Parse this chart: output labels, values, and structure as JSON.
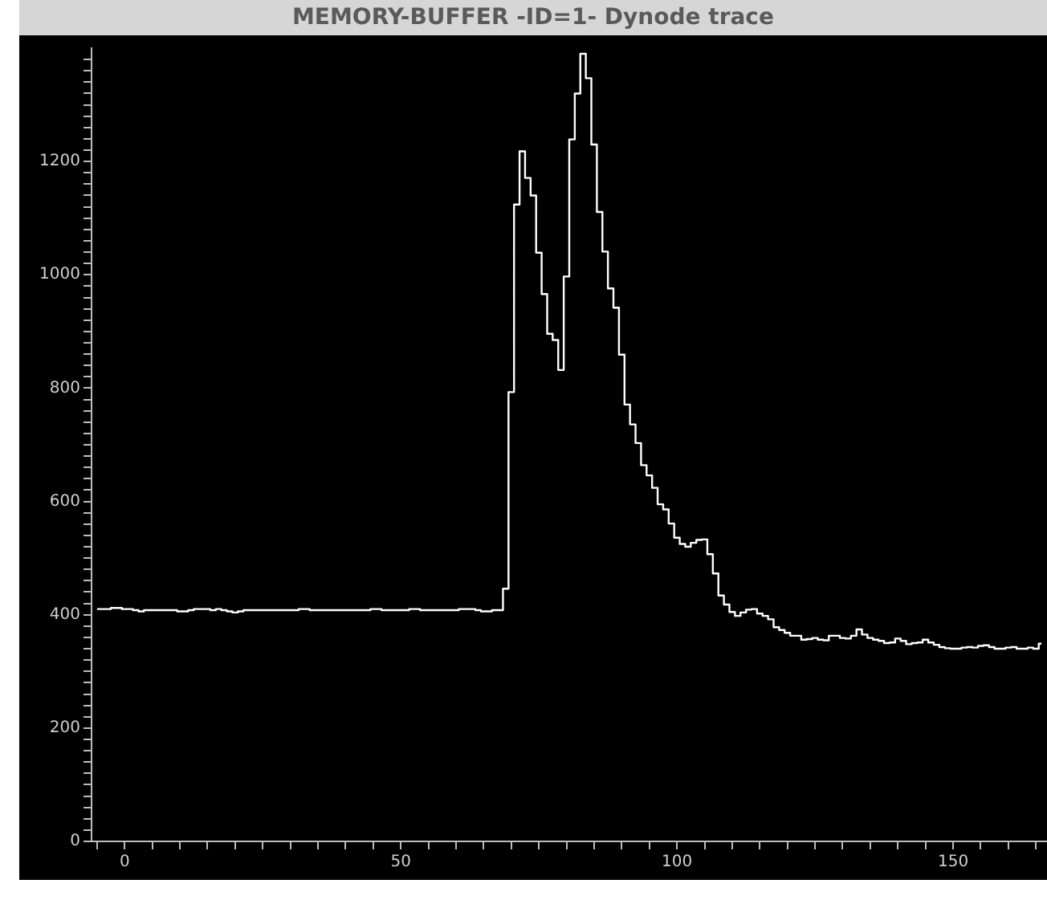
{
  "chart_data": {
    "type": "step",
    "title": "MEMORY-BUFFER -ID=1- Dynode trace",
    "color": "#ffffff",
    "x": [
      -5,
      -4,
      -3,
      -2,
      -1,
      0,
      1,
      2,
      3,
      4,
      5,
      6,
      7,
      8,
      9,
      10,
      11,
      12,
      13,
      14,
      15,
      16,
      17,
      18,
      19,
      20,
      21,
      22,
      23,
      24,
      25,
      26,
      27,
      28,
      29,
      30,
      31,
      32,
      33,
      34,
      35,
      36,
      37,
      38,
      39,
      40,
      41,
      42,
      43,
      44,
      45,
      46,
      47,
      48,
      49,
      50,
      51,
      52,
      53,
      54,
      55,
      56,
      57,
      58,
      59,
      60,
      61,
      62,
      63,
      64,
      65,
      66,
      67,
      68,
      69,
      70,
      71,
      72,
      73,
      74,
      75,
      76,
      77,
      78,
      79,
      80,
      81,
      82,
      83,
      84,
      85,
      86,
      87,
      88,
      89,
      90,
      91,
      92,
      93,
      94,
      95,
      96,
      97,
      98,
      99,
      100,
      101,
      102,
      103,
      104,
      105,
      106,
      107,
      108,
      109,
      110,
      111,
      112,
      113,
      114,
      115,
      116,
      117,
      118,
      119,
      120,
      121,
      122,
      123,
      124,
      125,
      126,
      127,
      128,
      129,
      130,
      131,
      132,
      133,
      134,
      135,
      136,
      137,
      138,
      139,
      140,
      141,
      142,
      143,
      144,
      145,
      146,
      147,
      148,
      149,
      150,
      151,
      152,
      153,
      154,
      155,
      156,
      157,
      158,
      159,
      160,
      161,
      162,
      163,
      164,
      165,
      166
    ],
    "values": [
      410,
      410,
      410,
      412,
      412,
      410,
      410,
      408,
      406,
      408,
      408,
      408,
      408,
      408,
      408,
      406,
      406,
      408,
      410,
      410,
      410,
      408,
      410,
      408,
      406,
      404,
      406,
      408,
      408,
      408,
      408,
      408,
      408,
      408,
      408,
      408,
      408,
      410,
      410,
      408,
      408,
      408,
      408,
      408,
      408,
      408,
      408,
      408,
      408,
      408,
      410,
      410,
      408,
      408,
      408,
      408,
      408,
      410,
      410,
      408,
      408,
      408,
      408,
      408,
      408,
      408,
      410,
      410,
      410,
      408,
      406,
      406,
      408,
      408,
      446,
      793,
      1124,
      1218,
      1171,
      1140,
      1039,
      966,
      896,
      885,
      832,
      997,
      1239,
      1320,
      1390,
      1347,
      1230,
      1111,
      1041,
      976,
      942,
      859,
      771,
      736,
      703,
      664,
      646,
      624,
      595,
      586,
      561,
      536,
      525,
      520,
      527,
      532,
      533,
      507,
      473,
      434,
      418,
      405,
      398,
      404,
      409,
      410,
      402,
      398,
      392,
      378,
      373,
      368,
      363,
      363,
      356,
      357,
      359,
      356,
      355,
      363,
      363,
      359,
      358,
      363,
      374,
      365,
      359,
      356,
      354,
      350,
      351,
      358,
      354,
      348,
      350,
      351,
      356,
      351,
      347,
      343,
      341,
      340,
      340,
      342,
      343,
      342,
      345,
      346,
      343,
      340,
      340,
      342,
      343,
      340,
      340,
      342,
      340,
      349
    ],
    "xlim": [
      -6,
      167
    ],
    "ylim": [
      0,
      1400
    ],
    "xticks": [
      {
        "value": -5,
        "label": null
      },
      0,
      {
        "value": 5,
        "label": null
      },
      {
        "value": 10,
        "label": null
      },
      {
        "value": 15,
        "label": null
      },
      {
        "value": 20,
        "label": null
      },
      {
        "value": 25,
        "label": null
      },
      {
        "value": 30,
        "label": null
      },
      {
        "value": 35,
        "label": null
      },
      {
        "value": 40,
        "label": null
      },
      {
        "value": 45,
        "label": null
      },
      50,
      {
        "value": 55,
        "label": null
      },
      {
        "value": 60,
        "label": null
      },
      {
        "value": 65,
        "label": null
      },
      {
        "value": 70,
        "label": null
      },
      {
        "value": 75,
        "label": null
      },
      {
        "value": 80,
        "label": null
      },
      {
        "value": 85,
        "label": null
      },
      {
        "value": 90,
        "label": null
      },
      {
        "value": 95,
        "label": null
      },
      100,
      {
        "value": 105,
        "label": null
      },
      {
        "value": 110,
        "label": null
      },
      {
        "value": 115,
        "label": null
      },
      {
        "value": 120,
        "label": null
      },
      {
        "value": 125,
        "label": null
      },
      {
        "value": 130,
        "label": null
      },
      {
        "value": 135,
        "label": null
      },
      {
        "value": 140,
        "label": null
      },
      {
        "value": 145,
        "label": null
      },
      150,
      {
        "value": 155,
        "label": null
      },
      {
        "value": 160,
        "label": null
      },
      {
        "value": 165,
        "label": null
      }
    ],
    "yticks": [
      0,
      {
        "value": 20,
        "label": null
      },
      {
        "value": 40,
        "label": null
      },
      {
        "value": 60,
        "label": null
      },
      {
        "value": 80,
        "label": null
      },
      {
        "value": 100,
        "label": null
      },
      {
        "value": 120,
        "label": null
      },
      {
        "value": 140,
        "label": null
      },
      {
        "value": 160,
        "label": null
      },
      {
        "value": 180,
        "label": null
      },
      200,
      {
        "value": 220,
        "label": null
      },
      {
        "value": 240,
        "label": null
      },
      {
        "value": 260,
        "label": null
      },
      {
        "value": 280,
        "label": null
      },
      {
        "value": 300,
        "label": null
      },
      {
        "value": 320,
        "label": null
      },
      {
        "value": 340,
        "label": null
      },
      {
        "value": 360,
        "label": null
      },
      {
        "value": 380,
        "label": null
      },
      400,
      {
        "value": 420,
        "label": null
      },
      {
        "value": 440,
        "label": null
      },
      {
        "value": 460,
        "label": null
      },
      {
        "value": 480,
        "label": null
      },
      {
        "value": 500,
        "label": null
      },
      {
        "value": 520,
        "label": null
      },
      {
        "value": 540,
        "label": null
      },
      {
        "value": 560,
        "label": null
      },
      {
        "value": 580,
        "label": null
      },
      600,
      {
        "value": 620,
        "label": null
      },
      {
        "value": 640,
        "label": null
      },
      {
        "value": 660,
        "label": null
      },
      {
        "value": 680,
        "label": null
      },
      {
        "value": 700,
        "label": null
      },
      {
        "value": 720,
        "label": null
      },
      {
        "value": 740,
        "label": null
      },
      {
        "value": 760,
        "label": null
      },
      {
        "value": 780,
        "label": null
      },
      800,
      {
        "value": 820,
        "label": null
      },
      {
        "value": 840,
        "label": null
      },
      {
        "value": 860,
        "label": null
      },
      {
        "value": 880,
        "label": null
      },
      {
        "value": 900,
        "label": null
      },
      {
        "value": 920,
        "label": null
      },
      {
        "value": 940,
        "label": null
      },
      {
        "value": 960,
        "label": null
      },
      {
        "value": 980,
        "label": null
      },
      1000,
      {
        "value": 1020,
        "label": null
      },
      {
        "value": 1040,
        "label": null
      },
      {
        "value": 1060,
        "label": null
      },
      {
        "value": 1080,
        "label": null
      },
      {
        "value": 1100,
        "label": null
      },
      {
        "value": 1120,
        "label": null
      },
      {
        "value": 1140,
        "label": null
      },
      {
        "value": 1160,
        "label": null
      },
      {
        "value": 1180,
        "label": null
      },
      1200,
      {
        "value": 1220,
        "label": null
      },
      {
        "value": 1240,
        "label": null
      },
      {
        "value": 1260,
        "label": null
      },
      {
        "value": 1280,
        "label": null
      },
      {
        "value": 1300,
        "label": null
      },
      {
        "value": 1320,
        "label": null
      },
      {
        "value": 1340,
        "label": null
      },
      {
        "value": 1360,
        "label": null
      },
      {
        "value": 1380,
        "label": null
      }
    ]
  }
}
